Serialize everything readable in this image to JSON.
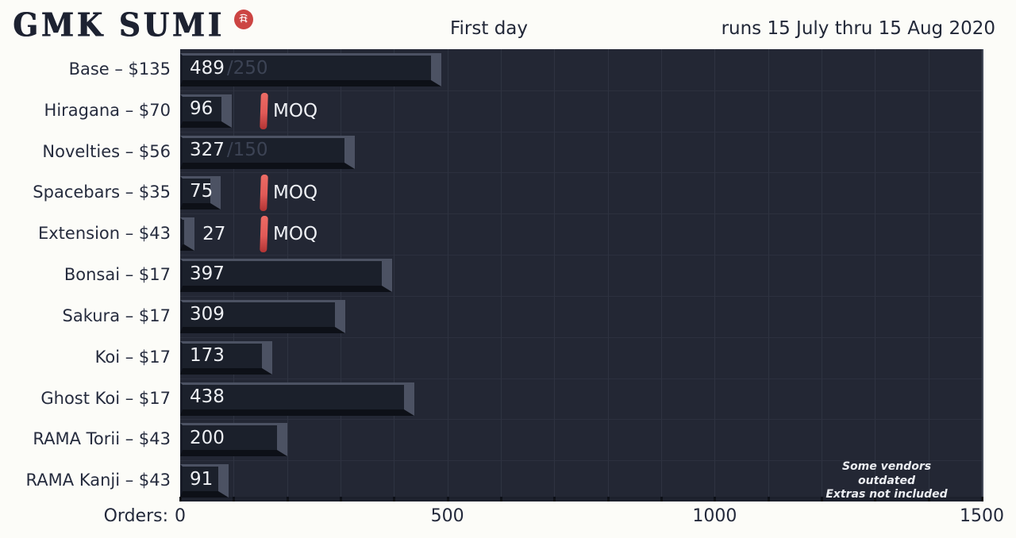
{
  "header": {
    "logo_text": "GMK SUMI",
    "center_title": "First day",
    "run_dates": "runs 15 July thru 15 Aug 2020"
  },
  "chart_data": {
    "type": "bar",
    "orientation": "horizontal",
    "title": "First day",
    "subtitle": "runs 15 July thru 15 Aug 2020",
    "xlabel": "Orders:",
    "xlim": [
      0,
      1500
    ],
    "x_tick_labels": [
      "0",
      "500",
      "1000",
      "1500"
    ],
    "x_tick_values": [
      0,
      500,
      1000,
      1500
    ],
    "gridline_step": 100,
    "grid": true,
    "legend": null,
    "categories": [
      "Base – $135",
      "Hiragana – $70",
      "Novelties – $56",
      "Spacebars – $35",
      "Extension – $43",
      "Bonsai – $17",
      "Sakura – $17",
      "Koi – $17",
      "Ghost Koi – $17",
      "RAMA Torii – $43",
      "RAMA Kanji – $43"
    ],
    "values": [
      489,
      96,
      327,
      75,
      27,
      397,
      309,
      173,
      438,
      200,
      91
    ],
    "value_suffixes": [
      "/250",
      "",
      "/150",
      "",
      "",
      "",
      "",
      "",
      "",
      "",
      ""
    ],
    "moq_markers": [
      {
        "category_index": 1,
        "value": 150,
        "label": "MOQ"
      },
      {
        "category_index": 3,
        "value": 150,
        "label": "MOQ"
      },
      {
        "category_index": 4,
        "value": 150,
        "label": "MOQ"
      }
    ]
  },
  "axis": {
    "label": "Orders:"
  },
  "footnote": {
    "line1": "Some vendors outdated",
    "line2": "Extras not included"
  },
  "colors": {
    "page_bg": "#fcfcf8",
    "plot_bg": "#232734",
    "gridline": "#2e3341",
    "bar_face": "#1b202b",
    "bar_bevel": "#4c5263",
    "bar_shadow": "#0d1017",
    "bar_text": "#eef0f4",
    "suffix_text": "#3c4354",
    "moq_red": "#e05a57",
    "seal_red": "#cc4543",
    "header_text": "#222838"
  }
}
